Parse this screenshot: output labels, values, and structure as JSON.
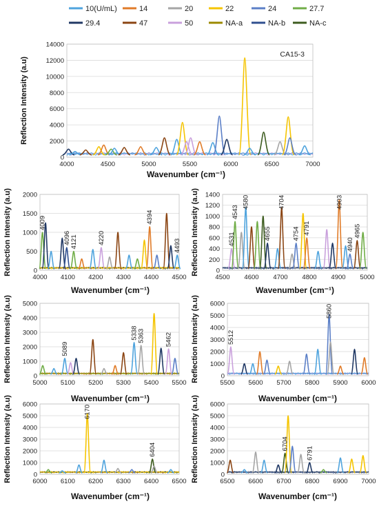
{
  "legend": [
    {
      "name": "10(U/mL)",
      "color": "#4ea3dd"
    },
    {
      "name": "14",
      "color": "#e07b28"
    },
    {
      "name": "20",
      "color": "#a5a5a5"
    },
    {
      "name": "22",
      "color": "#f5c400"
    },
    {
      "name": "24",
      "color": "#5b7fc7"
    },
    {
      "name": "27.7",
      "color": "#70ad47"
    },
    {
      "name": "29.4",
      "color": "#203864"
    },
    {
      "name": "47",
      "color": "#8b4513"
    },
    {
      "name": "50",
      "color": "#c9a0dc"
    },
    {
      "name": "NA-a",
      "color": "#9c8a00"
    },
    {
      "name": "NA-b",
      "color": "#2f4f8f"
    },
    {
      "name": "NA-c",
      "color": "#3d5c1f"
    }
  ],
  "chart_data": [
    {
      "type": "line",
      "title": "CA15-3",
      "xlabel": "Wavenumber (cm⁻¹)",
      "ylabel": "Reflection Intensity (a.u)",
      "xlim": [
        4000,
        7000
      ],
      "ylim": [
        0,
        14000
      ],
      "xticks": [
        4000,
        4500,
        5000,
        5500,
        6000,
        6500,
        7000
      ],
      "yticks": [
        0,
        2000,
        4000,
        6000,
        8000,
        10000,
        12000,
        14000
      ],
      "peaks": [
        {
          "x": 4020,
          "y": 1000,
          "series": "29.4"
        },
        {
          "x": 4100,
          "y": 700,
          "series": "10(U/mL)"
        },
        {
          "x": 4230,
          "y": 900,
          "series": "47"
        },
        {
          "x": 4390,
          "y": 1300,
          "series": "22"
        },
        {
          "x": 4450,
          "y": 1500,
          "series": "14"
        },
        {
          "x": 4540,
          "y": 1000,
          "series": "27.7"
        },
        {
          "x": 4580,
          "y": 1100,
          "series": "10(U/mL)"
        },
        {
          "x": 4700,
          "y": 1200,
          "series": "47"
        },
        {
          "x": 4900,
          "y": 1300,
          "series": "14"
        },
        {
          "x": 5090,
          "y": 1200,
          "series": "10(U/mL)"
        },
        {
          "x": 5190,
          "y": 2400,
          "series": "47"
        },
        {
          "x": 5340,
          "y": 2200,
          "series": "10(U/mL)"
        },
        {
          "x": 5410,
          "y": 4300,
          "series": "22"
        },
        {
          "x": 5460,
          "y": 1900,
          "series": "50"
        },
        {
          "x": 5510,
          "y": 2400,
          "series": "50"
        },
        {
          "x": 5620,
          "y": 1900,
          "series": "14"
        },
        {
          "x": 5780,
          "y": 1800,
          "series": "10(U/mL)"
        },
        {
          "x": 5860,
          "y": 5100,
          "series": "24"
        },
        {
          "x": 5950,
          "y": 2200,
          "series": "29.4"
        },
        {
          "x": 6170,
          "y": 12300,
          "series": "22"
        },
        {
          "x": 6230,
          "y": 1100,
          "series": "10(U/mL)"
        },
        {
          "x": 6400,
          "y": 3100,
          "series": "NA-c"
        },
        {
          "x": 6600,
          "y": 1900,
          "series": "20"
        },
        {
          "x": 6700,
          "y": 5000,
          "series": "22"
        },
        {
          "x": 6720,
          "y": 2400,
          "series": "24"
        },
        {
          "x": 6900,
          "y": 1400,
          "series": "10(U/mL)"
        }
      ]
    },
    {
      "type": "line",
      "xlabel": "Wavenumber (cm⁻¹)",
      "ylabel": "Reflection Intensity (a.u)",
      "xlim": [
        4000,
        4500
      ],
      "ylim": [
        0,
        2000
      ],
      "xticks": [
        4000,
        4100,
        4200,
        4300,
        4400,
        4500
      ],
      "yticks": [
        0,
        500,
        1000,
        1500,
        2000
      ],
      "annotations": [
        {
          "x": 4009,
          "label": "4009"
        },
        {
          "x": 4096,
          "label": "4096"
        },
        {
          "x": 4121,
          "label": "4121"
        },
        {
          "x": 4220,
          "label": "4220"
        },
        {
          "x": 4394,
          "label": "4394"
        },
        {
          "x": 4493,
          "label": "4493"
        }
      ],
      "peaks": [
        {
          "x": 4009,
          "y": 1000,
          "series": "27.7"
        },
        {
          "x": 4020,
          "y": 1250,
          "series": "29.4"
        },
        {
          "x": 4040,
          "y": 500,
          "series": "10(U/mL)"
        },
        {
          "x": 4080,
          "y": 850,
          "series": "29.4"
        },
        {
          "x": 4096,
          "y": 600,
          "series": "NA-b"
        },
        {
          "x": 4121,
          "y": 500,
          "series": "27.7"
        },
        {
          "x": 4150,
          "y": 300,
          "series": "14"
        },
        {
          "x": 4190,
          "y": 550,
          "series": "10(U/mL)"
        },
        {
          "x": 4220,
          "y": 600,
          "series": "50"
        },
        {
          "x": 4250,
          "y": 350,
          "series": "20"
        },
        {
          "x": 4280,
          "y": 1000,
          "series": "47"
        },
        {
          "x": 4320,
          "y": 400,
          "series": "10(U/mL)"
        },
        {
          "x": 4350,
          "y": 300,
          "series": "27.7"
        },
        {
          "x": 4375,
          "y": 800,
          "series": "22"
        },
        {
          "x": 4394,
          "y": 1150,
          "series": "14"
        },
        {
          "x": 4420,
          "y": 400,
          "series": "24"
        },
        {
          "x": 4455,
          "y": 1500,
          "series": "47"
        },
        {
          "x": 4470,
          "y": 650,
          "series": "29.4"
        },
        {
          "x": 4493,
          "y": 400,
          "series": "10(U/mL)"
        }
      ]
    },
    {
      "type": "line",
      "xlabel": "Wavenumber (cm⁻¹)",
      "ylabel": "Reflection Intensity (a.u)",
      "xlim": [
        4500,
        5000
      ],
      "ylim": [
        0,
        1400
      ],
      "xticks": [
        4500,
        4600,
        4700,
        4800,
        4900,
        5000
      ],
      "yticks": [
        0,
        200,
        400,
        600,
        800,
        1000,
        1200,
        1400
      ],
      "annotations": [
        {
          "x": 4531,
          "label": "4531"
        },
        {
          "x": 4543,
          "label": "4543"
        },
        {
          "x": 4580,
          "label": "4580"
        },
        {
          "x": 4655,
          "label": "4655"
        },
        {
          "x": 4704,
          "label": "4704"
        },
        {
          "x": 4754,
          "label": "4754"
        },
        {
          "x": 4791,
          "label": "4791"
        },
        {
          "x": 4903,
          "label": "4903"
        },
        {
          "x": 4940,
          "label": "4940"
        },
        {
          "x": 4965,
          "label": "4965"
        }
      ],
      "peaks": [
        {
          "x": 4531,
          "y": 400,
          "series": "50"
        },
        {
          "x": 4543,
          "y": 900,
          "series": "27.7"
        },
        {
          "x": 4565,
          "y": 700,
          "series": "20"
        },
        {
          "x": 4580,
          "y": 1150,
          "series": "10(U/mL)"
        },
        {
          "x": 4600,
          "y": 800,
          "series": "47"
        },
        {
          "x": 4620,
          "y": 900,
          "series": "27.7"
        },
        {
          "x": 4640,
          "y": 1000,
          "series": "NA-c"
        },
        {
          "x": 4655,
          "y": 500,
          "series": "29.4"
        },
        {
          "x": 4690,
          "y": 400,
          "series": "10(U/mL)"
        },
        {
          "x": 4704,
          "y": 1150,
          "series": "47"
        },
        {
          "x": 4740,
          "y": 300,
          "series": "20"
        },
        {
          "x": 4754,
          "y": 500,
          "series": "24"
        },
        {
          "x": 4778,
          "y": 1050,
          "series": "22"
        },
        {
          "x": 4791,
          "y": 600,
          "series": "14"
        },
        {
          "x": 4830,
          "y": 350,
          "series": "10(U/mL)"
        },
        {
          "x": 4860,
          "y": 750,
          "series": "50"
        },
        {
          "x": 4880,
          "y": 500,
          "series": "29.4"
        },
        {
          "x": 4903,
          "y": 1300,
          "series": "14"
        },
        {
          "x": 4925,
          "y": 450,
          "series": "10(U/mL)"
        },
        {
          "x": 4940,
          "y": 300,
          "series": "24"
        },
        {
          "x": 4965,
          "y": 550,
          "series": "47"
        },
        {
          "x": 4985,
          "y": 700,
          "series": "27.7"
        }
      ]
    },
    {
      "type": "line",
      "xlabel": "Wavenumber (cm⁻¹)",
      "ylabel": "Reflection Intensity (a.u)",
      "xlim": [
        5000,
        5500
      ],
      "ylim": [
        0,
        5000
      ],
      "xticks": [
        5000,
        5100,
        5200,
        5300,
        5400,
        5500
      ],
      "yticks": [
        0,
        1000,
        2000,
        3000,
        4000,
        5000
      ],
      "annotations": [
        {
          "x": 5089,
          "label": "5089"
        },
        {
          "x": 5338,
          "label": "5338"
        },
        {
          "x": 5363,
          "label": "5363"
        },
        {
          "x": 5462,
          "label": "5462"
        }
      ],
      "peaks": [
        {
          "x": 5010,
          "y": 700,
          "series": "27.7"
        },
        {
          "x": 5050,
          "y": 500,
          "series": "10(U/mL)"
        },
        {
          "x": 5089,
          "y": 1200,
          "series": "10(U/mL)"
        },
        {
          "x": 5110,
          "y": 900,
          "series": "50"
        },
        {
          "x": 5130,
          "y": 1200,
          "series": "29.4"
        },
        {
          "x": 5190,
          "y": 2500,
          "series": "47"
        },
        {
          "x": 5230,
          "y": 500,
          "series": "20"
        },
        {
          "x": 5270,
          "y": 700,
          "series": "14"
        },
        {
          "x": 5300,
          "y": 1600,
          "series": "47"
        },
        {
          "x": 5338,
          "y": 2300,
          "series": "10(U/mL)"
        },
        {
          "x": 5363,
          "y": 2100,
          "series": "20"
        },
        {
          "x": 5410,
          "y": 4300,
          "series": "22"
        },
        {
          "x": 5435,
          "y": 1900,
          "series": "29.4"
        },
        {
          "x": 5462,
          "y": 1850,
          "series": "50"
        },
        {
          "x": 5485,
          "y": 1200,
          "series": "24"
        }
      ]
    },
    {
      "type": "line",
      "xlabel": "Wavenumber (cm⁻¹)",
      "ylabel": "Reflection Intensity (a.u)",
      "xlim": [
        5500,
        6000
      ],
      "ylim": [
        0,
        6000
      ],
      "xticks": [
        5500,
        5600,
        5700,
        5800,
        5900,
        6000
      ],
      "yticks": [
        0,
        1000,
        2000,
        3000,
        4000,
        5000,
        6000
      ],
      "annotations": [
        {
          "x": 5512,
          "label": "5512"
        },
        {
          "x": 5860,
          "label": "5860"
        }
      ],
      "peaks": [
        {
          "x": 5512,
          "y": 2400,
          "series": "50"
        },
        {
          "x": 5560,
          "y": 1000,
          "series": "29.4"
        },
        {
          "x": 5590,
          "y": 1000,
          "series": "10(U/mL)"
        },
        {
          "x": 5615,
          "y": 2000,
          "series": "14"
        },
        {
          "x": 5640,
          "y": 1300,
          "series": "24"
        },
        {
          "x": 5680,
          "y": 800,
          "series": "22"
        },
        {
          "x": 5720,
          "y": 1200,
          "series": "20"
        },
        {
          "x": 5780,
          "y": 1800,
          "series": "24"
        },
        {
          "x": 5820,
          "y": 2200,
          "series": "10(U/mL)"
        },
        {
          "x": 5860,
          "y": 5100,
          "series": "24"
        },
        {
          "x": 5865,
          "y": 2800,
          "series": "20"
        },
        {
          "x": 5900,
          "y": 800,
          "series": "14"
        },
        {
          "x": 5950,
          "y": 2200,
          "series": "29.4"
        },
        {
          "x": 5985,
          "y": 1500,
          "series": "14"
        }
      ]
    },
    {
      "type": "line",
      "xlabel": "Wavenumber (cm⁻¹)",
      "ylabel": "Reflection Intensity (a.u)",
      "xlim": [
        6000,
        6500
      ],
      "ylim": [
        0,
        6000
      ],
      "xticks": [
        6000,
        6100,
        6200,
        6300,
        6400,
        6500
      ],
      "yticks": [
        0,
        1000,
        2000,
        3000,
        4000,
        5000,
        6000
      ],
      "annotations": [
        {
          "x": 6170,
          "label": "6170"
        },
        {
          "x": 6404,
          "label": "6404"
        }
      ],
      "peaks": [
        {
          "x": 6030,
          "y": 400,
          "series": "27.7"
        },
        {
          "x": 6080,
          "y": 300,
          "series": "10(U/mL)"
        },
        {
          "x": 6140,
          "y": 800,
          "series": "10(U/mL)"
        },
        {
          "x": 6170,
          "y": 5200,
          "series": "22"
        },
        {
          "x": 6230,
          "y": 1200,
          "series": "10(U/mL)"
        },
        {
          "x": 6280,
          "y": 500,
          "series": "20"
        },
        {
          "x": 6330,
          "y": 400,
          "series": "24"
        },
        {
          "x": 6404,
          "y": 1300,
          "series": "NA-c"
        },
        {
          "x": 6410,
          "y": 700,
          "series": "20"
        },
        {
          "x": 6470,
          "y": 400,
          "series": "10(U/mL)"
        }
      ]
    },
    {
      "type": "line",
      "xlabel": "Wavenumber (cm⁻¹)",
      "ylabel": "Reflection Intensity (a.u)",
      "xlim": [
        6500,
        7000
      ],
      "ylim": [
        0,
        6000
      ],
      "xticks": [
        6500,
        6600,
        6700,
        6800,
        6900,
        7000
      ],
      "yticks": [
        0,
        1000,
        2000,
        3000,
        4000,
        5000,
        6000
      ],
      "annotations": [
        {
          "x": 6704,
          "label": "6704"
        },
        {
          "x": 6791,
          "label": "6791"
        }
      ],
      "peaks": [
        {
          "x": 6510,
          "y": 1200,
          "series": "47"
        },
        {
          "x": 6560,
          "y": 400,
          "series": "10(U/mL)"
        },
        {
          "x": 6600,
          "y": 1900,
          "series": "20"
        },
        {
          "x": 6630,
          "y": 1200,
          "series": "10(U/mL)"
        },
        {
          "x": 6680,
          "y": 800,
          "series": "29.4"
        },
        {
          "x": 6704,
          "y": 1800,
          "series": "NA-c"
        },
        {
          "x": 6715,
          "y": 5000,
          "series": "22"
        },
        {
          "x": 6730,
          "y": 2400,
          "series": "24"
        },
        {
          "x": 6760,
          "y": 1700,
          "series": "20"
        },
        {
          "x": 6791,
          "y": 1000,
          "series": "29.4"
        },
        {
          "x": 6840,
          "y": 400,
          "series": "27.7"
        },
        {
          "x": 6900,
          "y": 1400,
          "series": "10(U/mL)"
        },
        {
          "x": 6940,
          "y": 1300,
          "series": "22"
        },
        {
          "x": 6980,
          "y": 1600,
          "series": "22"
        }
      ]
    }
  ]
}
